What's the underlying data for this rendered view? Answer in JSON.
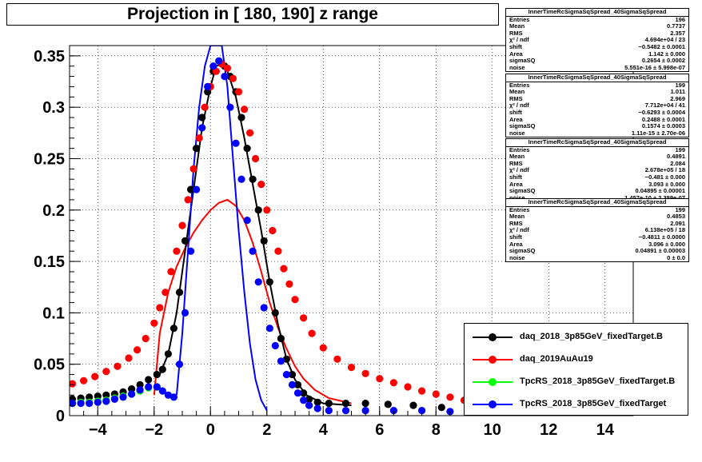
{
  "chart_data": {
    "type": "scatter",
    "title": "Projection in [ 180, 190] z range",
    "xlim": [
      -5,
      15
    ],
    "ylim": [
      0,
      0.36
    ],
    "xticks": [
      -4,
      -2,
      0,
      2,
      4,
      6,
      8,
      10,
      12,
      14
    ],
    "xtick_labels": [
      "−4",
      "−2",
      "0",
      "2",
      "4",
      "6",
      "8",
      "10",
      "12",
      "14"
    ],
    "yticks": [
      0,
      0.05,
      0.1,
      0.15,
      0.2,
      0.25,
      0.3,
      0.35
    ],
    "ytick_labels": [
      "0",
      "0.05",
      "0.1",
      "0.15",
      "0.2",
      "0.25",
      "0.3",
      "0.35"
    ],
    "grid": true,
    "legend_position": "bottom-right",
    "series": [
      {
        "name": "daq_2018_3p85GeV_fixedTarget.B",
        "color": "#000000",
        "points": [
          [
            -4.9,
            0.016
          ],
          [
            -4.6,
            0.017
          ],
          [
            -4.3,
            0.018
          ],
          [
            -4.0,
            0.019
          ],
          [
            -3.7,
            0.02
          ],
          [
            -3.4,
            0.021
          ],
          [
            -3.1,
            0.023
          ],
          [
            -2.8,
            0.026
          ],
          [
            -2.5,
            0.03
          ],
          [
            -2.2,
            0.035
          ],
          [
            -1.9,
            0.04
          ],
          [
            -1.7,
            0.045
          ],
          [
            -1.5,
            0.06
          ],
          [
            -1.3,
            0.085
          ],
          [
            -1.1,
            0.12
          ],
          [
            -0.9,
            0.17
          ],
          [
            -0.7,
            0.22
          ],
          [
            -0.5,
            0.26
          ],
          [
            -0.3,
            0.29
          ],
          [
            -0.1,
            0.315
          ],
          [
            0.1,
            0.335
          ],
          [
            0.3,
            0.345
          ],
          [
            0.5,
            0.34
          ],
          [
            0.7,
            0.33
          ],
          [
            0.9,
            0.315
          ],
          [
            1.1,
            0.29
          ],
          [
            1.3,
            0.26
          ],
          [
            1.5,
            0.23
          ],
          [
            1.7,
            0.2
          ],
          [
            1.9,
            0.17
          ],
          [
            2.1,
            0.13
          ],
          [
            2.3,
            0.1
          ],
          [
            2.5,
            0.075
          ],
          [
            2.7,
            0.055
          ],
          [
            2.9,
            0.04
          ],
          [
            3.1,
            0.03
          ],
          [
            3.3,
            0.022
          ],
          [
            3.5,
            0.016
          ],
          [
            3.8,
            0.013
          ],
          [
            4.2,
            0.012
          ],
          [
            4.8,
            0.012
          ],
          [
            5.5,
            0.012
          ],
          [
            6.3,
            0.011
          ],
          [
            7.2,
            0.01
          ],
          [
            8.2,
            0.008
          ],
          [
            9.2,
            0.005
          ],
          [
            10.5,
            0.004
          ],
          [
            12.0,
            0.003
          ],
          [
            13.5,
            0.002
          ],
          [
            15.0,
            0.001
          ]
        ]
      },
      {
        "name": "daq_2019AuAu19",
        "color": "#ff0000",
        "points": [
          [
            -4.9,
            0.031
          ],
          [
            -4.5,
            0.034
          ],
          [
            -4.1,
            0.038
          ],
          [
            -3.7,
            0.043
          ],
          [
            -3.3,
            0.048
          ],
          [
            -2.9,
            0.056
          ],
          [
            -2.6,
            0.064
          ],
          [
            -2.3,
            0.075
          ],
          [
            -2.0,
            0.09
          ],
          [
            -1.8,
            0.105
          ],
          [
            -1.6,
            0.12
          ],
          [
            -1.4,
            0.14
          ],
          [
            -1.2,
            0.16
          ],
          [
            -1.0,
            0.185
          ],
          [
            -0.8,
            0.21
          ],
          [
            -0.6,
            0.24
          ],
          [
            -0.4,
            0.27
          ],
          [
            -0.2,
            0.3
          ],
          [
            0.0,
            0.32
          ],
          [
            0.2,
            0.335
          ],
          [
            0.4,
            0.342
          ],
          [
            0.6,
            0.338
          ],
          [
            0.8,
            0.328
          ],
          [
            1.0,
            0.315
          ],
          [
            1.2,
            0.298
          ],
          [
            1.4,
            0.275
          ],
          [
            1.6,
            0.25
          ],
          [
            1.8,
            0.225
          ],
          [
            2.0,
            0.2
          ],
          [
            2.2,
            0.18
          ],
          [
            2.4,
            0.16
          ],
          [
            2.6,
            0.143
          ],
          [
            2.8,
            0.128
          ],
          [
            3.0,
            0.113
          ],
          [
            3.3,
            0.095
          ],
          [
            3.6,
            0.08
          ],
          [
            4.0,
            0.066
          ],
          [
            4.5,
            0.055
          ],
          [
            5.0,
            0.047
          ],
          [
            5.5,
            0.041
          ],
          [
            6.0,
            0.036
          ],
          [
            6.5,
            0.032
          ],
          [
            7.0,
            0.028
          ],
          [
            7.5,
            0.024
          ],
          [
            8.0,
            0.021
          ],
          [
            8.5,
            0.018
          ],
          [
            9.0,
            0.015
          ],
          [
            10.0,
            0.011
          ],
          [
            11.0,
            0.008
          ],
          [
            12.0,
            0.006
          ],
          [
            13.0,
            0.004
          ],
          [
            14.0,
            0.003
          ],
          [
            15.0,
            0.002
          ]
        ]
      },
      {
        "name": "TpcRS_2018_3p85GeV_fixedTarget.B",
        "color": "#00ff00",
        "points": [
          [
            -4.9,
            0.012
          ],
          [
            -4.6,
            0.013
          ],
          [
            -4.3,
            0.013
          ],
          [
            -4.0,
            0.014
          ],
          [
            -3.7,
            0.015
          ],
          [
            -3.4,
            0.017
          ],
          [
            -3.1,
            0.019
          ],
          [
            -2.8,
            0.021
          ],
          [
            -2.5,
            0.024
          ],
          [
            -2.2,
            0.027
          ],
          [
            -1.9,
            0.028
          ]
        ]
      },
      {
        "name": "TpcRS_2018_3p85GeV_fixedTarget",
        "color": "#0000ff",
        "points": [
          [
            -4.9,
            0.012
          ],
          [
            -4.6,
            0.012
          ],
          [
            -4.3,
            0.012
          ],
          [
            -4.0,
            0.013
          ],
          [
            -3.7,
            0.014
          ],
          [
            -3.4,
            0.016
          ],
          [
            -3.1,
            0.018
          ],
          [
            -2.8,
            0.021
          ],
          [
            -2.5,
            0.025
          ],
          [
            -2.2,
            0.028
          ],
          [
            -1.9,
            0.028
          ],
          [
            -1.7,
            0.024
          ],
          [
            -1.5,
            0.02
          ],
          [
            -1.3,
            0.018
          ],
          [
            -1.1,
            0.05
          ],
          [
            -0.9,
            0.1
          ],
          [
            -0.7,
            0.16
          ],
          [
            -0.5,
            0.22
          ],
          [
            -0.3,
            0.28
          ],
          [
            -0.1,
            0.32
          ],
          [
            0.1,
            0.34
          ],
          [
            0.3,
            0.345
          ],
          [
            0.5,
            0.33
          ],
          [
            0.7,
            0.3
          ],
          [
            0.9,
            0.265
          ],
          [
            1.1,
            0.23
          ],
          [
            1.3,
            0.19
          ],
          [
            1.5,
            0.16
          ],
          [
            1.7,
            0.13
          ],
          [
            1.9,
            0.105
          ],
          [
            2.1,
            0.085
          ],
          [
            2.3,
            0.068
          ],
          [
            2.5,
            0.053
          ],
          [
            2.7,
            0.04
          ],
          [
            2.9,
            0.03
          ],
          [
            3.1,
            0.022
          ],
          [
            3.3,
            0.015
          ],
          [
            3.5,
            0.01
          ],
          [
            3.8,
            0.007
          ],
          [
            4.2,
            0.005
          ],
          [
            4.8,
            0.005
          ],
          [
            5.5,
            0.005
          ],
          [
            6.5,
            0.005
          ],
          [
            7.5,
            0.005
          ],
          [
            8.5,
            0.004
          ],
          [
            10.0,
            0.003
          ],
          [
            12.0,
            0.002
          ],
          [
            14.0,
            0.001
          ],
          [
            15.0,
            0.001
          ]
        ]
      }
    ],
    "fit_curves": [
      {
        "color": "#ff0000",
        "points": [
          [
            -2.0,
            0.02
          ],
          [
            -1.8,
            0.08
          ],
          [
            -1.5,
            0.12
          ],
          [
            -1.2,
            0.145
          ],
          [
            -0.9,
            0.163
          ],
          [
            -0.6,
            0.178
          ],
          [
            -0.3,
            0.19
          ],
          [
            0.0,
            0.2
          ],
          [
            0.3,
            0.207
          ],
          [
            0.6,
            0.21
          ],
          [
            0.9,
            0.204
          ],
          [
            1.2,
            0.19
          ],
          [
            1.5,
            0.168
          ],
          [
            1.8,
            0.14
          ],
          [
            2.1,
            0.11
          ],
          [
            2.4,
            0.085
          ],
          [
            2.7,
            0.065
          ],
          [
            3.0,
            0.048
          ],
          [
            3.3,
            0.036
          ],
          [
            3.7,
            0.025
          ],
          [
            4.2,
            0.017
          ],
          [
            5.0,
            0.012
          ]
        ]
      },
      {
        "color": "#000000",
        "points": [
          [
            -1.8,
            0.04
          ],
          [
            -1.5,
            0.06
          ],
          [
            -1.2,
            0.1
          ],
          [
            -0.9,
            0.16
          ],
          [
            -0.6,
            0.22
          ],
          [
            -0.3,
            0.28
          ],
          [
            0.0,
            0.32
          ],
          [
            0.2,
            0.34
          ],
          [
            0.4,
            0.342
          ],
          [
            0.6,
            0.335
          ],
          [
            0.9,
            0.31
          ],
          [
            1.2,
            0.27
          ],
          [
            1.5,
            0.225
          ],
          [
            1.8,
            0.18
          ],
          [
            2.1,
            0.13
          ],
          [
            2.4,
            0.088
          ],
          [
            2.7,
            0.055
          ],
          [
            3.0,
            0.035
          ],
          [
            3.4,
            0.02
          ],
          [
            4.0,
            0.012
          ],
          [
            5.0,
            0.01
          ]
        ]
      },
      {
        "color": "#0000ff",
        "points": [
          [
            -1.2,
            0.02
          ],
          [
            -1.0,
            0.08
          ],
          [
            -0.8,
            0.16
          ],
          [
            -0.6,
            0.24
          ],
          [
            -0.4,
            0.3
          ],
          [
            -0.2,
            0.34
          ],
          [
            0.0,
            0.36
          ],
          [
            0.2,
            0.36
          ],
          [
            0.4,
            0.36
          ],
          [
            0.6,
            0.32
          ],
          [
            0.8,
            0.25
          ],
          [
            1.0,
            0.18
          ],
          [
            1.2,
            0.12
          ],
          [
            1.4,
            0.07
          ],
          [
            1.6,
            0.035
          ],
          [
            1.8,
            0.015
          ],
          [
            2.0,
            0.005
          ]
        ]
      }
    ]
  },
  "stats": [
    {
      "header": "InnerTimeRcSigmaSqSpread_40SigmaSqSpread",
      "rows": [
        [
          "Entries",
          "196"
        ],
        [
          "Mean",
          "0.7737"
        ],
        [
          "RMS",
          "2.357"
        ],
        [
          "χ² / ndf",
          "4.694e+04 / 23"
        ],
        [
          "shift",
          "−0.5482 ± 0.0001"
        ],
        [
          "Area",
          "1.142 ± 0.000"
        ],
        [
          "sigmaSQ",
          "0.2654 ± 0.0002"
        ],
        [
          "noise",
          "5.551e-16 ± 5.998e-07"
        ]
      ]
    },
    {
      "header": "InnerTimeRcSigmaSqSpread_40SigmaSqSpread",
      "rows": [
        [
          "Entries",
          "199"
        ],
        [
          "Mean",
          "1.011"
        ],
        [
          "RMS",
          "2.969"
        ],
        [
          "χ² / ndf",
          "7.712e+04 / 41"
        ],
        [
          "shift",
          "−0.6293 ± 0.0004"
        ],
        [
          "Area",
          "0.2488 ± 0.0001"
        ],
        [
          "sigmaSQ",
          "0.1574 ± 0.0003"
        ],
        [
          "noise",
          "1.11e-15 ± 2.70e-06"
        ]
      ]
    },
    {
      "header": "InnerTimeRcSigmaSqSpread_40SigmaSqSpread",
      "rows": [
        [
          "Entries",
          "199"
        ],
        [
          "Mean",
          "0.4891"
        ],
        [
          "RMS",
          "2.084"
        ],
        [
          "χ² / ndf",
          "2.678e+05 / 18"
        ],
        [
          "shift",
          "−0.481 ± 0.000"
        ],
        [
          "Area",
          "3.093 ± 0.000"
        ],
        [
          "sigmaSQ",
          "0.04895 ± 0.00001"
        ],
        [
          "noise",
          "1.457e-10 ± 2.389e-07"
        ]
      ]
    },
    {
      "header": "InnerTimeRcSigmaSqSpread_40SigmaSqSpread",
      "rows": [
        [
          "Entries",
          "199"
        ],
        [
          "Mean",
          "0.4853"
        ],
        [
          "RMS",
          "2.091"
        ],
        [
          "χ² / ndf",
          "6.138e+05 / 18"
        ],
        [
          "shift",
          "−0.4811 ± 0.0000"
        ],
        [
          "Area",
          "3.096 ± 0.000"
        ],
        [
          "sigmaSQ",
          "0.04891 ± 0.00003"
        ],
        [
          "noise",
          "0 ± 0.0"
        ]
      ]
    }
  ],
  "legend": [
    {
      "label": "daq_2018_3p85GeV_fixedTarget.B",
      "color": "#000000"
    },
    {
      "label": "daq_2019AuAu19",
      "color": "#ff0000"
    },
    {
      "label": "TpcRS_2018_3p85GeV_fixedTarget.B",
      "color": "#00ff00"
    },
    {
      "label": "TpcRS_2018_3p85GeV_fixedTarget",
      "color": "#0000ff"
    }
  ]
}
